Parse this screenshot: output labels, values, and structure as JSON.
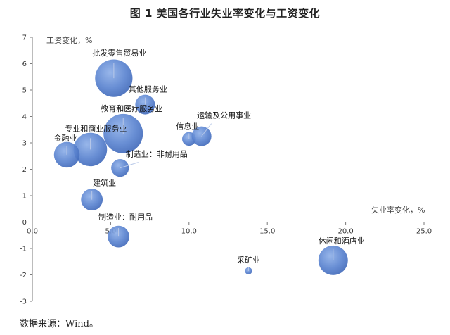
{
  "chart_data": {
    "type": "scatter",
    "title": "图 1  美国各行业失业率变化与工资变化",
    "xlabel": "失业率变化，%",
    "ylabel": "工资变化，%",
    "xlim": [
      0,
      25
    ],
    "ylim": [
      -3,
      7
    ],
    "x_ticks": [
      "0.0",
      "5.0",
      "10.0",
      "15.0",
      "20.0",
      "25.0"
    ],
    "y_ticks": [
      "-3",
      "-2",
      "-1",
      "0",
      "1",
      "2",
      "3",
      "4",
      "5",
      "6",
      "7"
    ],
    "grid": false,
    "points": [
      {
        "label": "批发零售贸易业",
        "x": 5.2,
        "y": 5.45,
        "size": 0.95
      },
      {
        "label": "其他服务业",
        "x": 7.2,
        "y": 4.45,
        "size": 0.5
      },
      {
        "label": "教育和医疗服务业",
        "x": 5.8,
        "y": 3.35,
        "size": 1.0
      },
      {
        "label": "专业和商业服务业",
        "x": 3.7,
        "y": 2.75,
        "size": 0.85
      },
      {
        "label": "金融业",
        "x": 2.2,
        "y": 2.55,
        "size": 0.65
      },
      {
        "label": "信息业",
        "x": 10.0,
        "y": 3.15,
        "size": 0.35
      },
      {
        "label": "运输及公用事业",
        "x": 10.8,
        "y": 3.25,
        "size": 0.5
      },
      {
        "label": "制造业：非耐用品",
        "x": 5.6,
        "y": 2.05,
        "size": 0.45
      },
      {
        "label": "建筑业",
        "x": 3.8,
        "y": 0.85,
        "size": 0.55
      },
      {
        "label": "制造业：耐用品",
        "x": 5.5,
        "y": -0.55,
        "size": 0.55
      },
      {
        "label": "采矿业",
        "x": 13.8,
        "y": -1.85,
        "size": 0.18
      },
      {
        "label": "休闲和酒店业",
        "x": 19.2,
        "y": -1.45,
        "size": 0.75
      }
    ],
    "color": "#4f79c9"
  },
  "source": "数据来源：Wind。"
}
